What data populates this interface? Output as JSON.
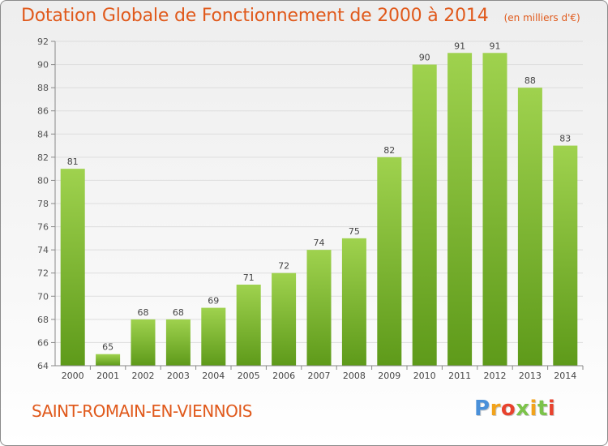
{
  "title": "Dotation Globale de Fonctionnement de 2000 à 2014",
  "unit_note": "(en milliers d'€)",
  "commune": "SAINT-ROMAIN-EN-VIENNOIS",
  "logo": {
    "text": "Proxiti",
    "colors": [
      "#4a90d9",
      "#f2a31b",
      "#e8432e",
      "#7cc34a",
      "#f2a31b",
      "#7cc34a",
      "#e8432e"
    ]
  },
  "colors": {
    "accent": "#e0591b",
    "bar_light": "#9fd24e",
    "bar_dark": "#5e9a1a",
    "grid": "#dddddd"
  },
  "chart_data": {
    "type": "bar",
    "categories": [
      "2000",
      "2001",
      "2002",
      "2003",
      "2004",
      "2005",
      "2006",
      "2007",
      "2008",
      "2009",
      "2010",
      "2011",
      "2012",
      "2013",
      "2014"
    ],
    "values": [
      81,
      65,
      68,
      68,
      69,
      71,
      72,
      74,
      75,
      82,
      90,
      91,
      91,
      88,
      83
    ],
    "ylim": [
      64,
      92
    ],
    "yticks": [
      64,
      66,
      68,
      70,
      72,
      74,
      76,
      78,
      80,
      82,
      84,
      86,
      88,
      90,
      92
    ],
    "grid": true,
    "data_labels": true
  }
}
